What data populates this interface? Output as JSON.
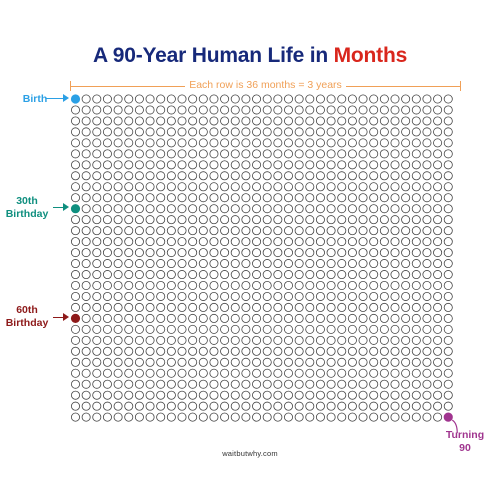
{
  "title": {
    "prefix": "A 90-Year Human Life in",
    "highlight": "Months",
    "prefix_color": "#17297a",
    "highlight_color": "#d9261c"
  },
  "row_note": "Each row is 36 months = 3 years",
  "row_note_color": "#f0a057",
  "grid": {
    "rows": 30,
    "columns": 36,
    "total_months": 1080,
    "empty_circle_stroke": "#444444"
  },
  "milestones": [
    {
      "id": "birth",
      "label": "Birth",
      "month_index": 0,
      "color": "#2ba0e5",
      "arrow": "right"
    },
    {
      "id": "30th-birthday",
      "label": "30th Birthday",
      "month_index": 360,
      "color": "#0f8f7f",
      "arrow": "right"
    },
    {
      "id": "60th-birthday",
      "label": "60th Birthday",
      "month_index": 720,
      "color": "#8e1a1a",
      "arrow": "right"
    },
    {
      "id": "turning-90",
      "label": "Turning 90",
      "month_index": 1079,
      "color": "#a0358f",
      "arrow": "up-left"
    }
  ],
  "footer": "waitbutwhy.com"
}
